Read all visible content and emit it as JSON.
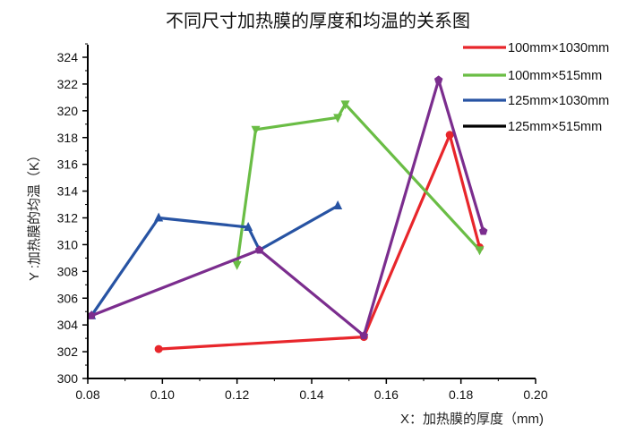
{
  "chart_data": {
    "type": "line",
    "title": "不同尺寸加热膜的厚度和均温的关系图",
    "xlabel": "X：加热膜的厚度（mm)",
    "ylabel": "Y :加热膜的均温（K）",
    "xlim": [
      0.08,
      0.2
    ],
    "ylim": [
      300,
      325
    ],
    "x_ticks": [
      "0.08",
      "0.10",
      "0.12",
      "0.14",
      "0.16",
      "0.18",
      "0.20"
    ],
    "y_ticks": [
      "300",
      "302",
      "304",
      "306",
      "308",
      "310",
      "312",
      "314",
      "316",
      "318",
      "320",
      "322",
      "324"
    ],
    "grid": false,
    "legend_position": "top-right",
    "series": [
      {
        "name": "100mm×1030mm",
        "color": "#e8262b",
        "marker": "circle",
        "x": [
          0.099,
          0.154,
          0.177,
          0.185
        ],
        "y": [
          302.2,
          303.1,
          318.2,
          309.8
        ]
      },
      {
        "name": "100mm×515mm",
        "color": "#6abd45",
        "marker": "triangle-down",
        "x": [
          0.12,
          0.125,
          0.147,
          0.149,
          0.185
        ],
        "y": [
          308.5,
          318.6,
          319.5,
          320.5,
          309.6
        ]
      },
      {
        "name": "125mm×1030mm",
        "color": "#2753a3",
        "marker": "triangle-up",
        "x": [
          0.081,
          0.099,
          0.123,
          0.126,
          0.147
        ],
        "y": [
          304.7,
          312.0,
          311.3,
          309.6,
          312.9
        ],
        "marker_mask": [
          true,
          true,
          true,
          false,
          true
        ]
      },
      {
        "name": "125mm×515mm",
        "color": "#7b2d8e",
        "legend_color": "#000000",
        "marker": "pentagon",
        "x": [
          0.081,
          0.126,
          0.154,
          0.174,
          0.186
        ],
        "y": [
          304.7,
          309.6,
          303.2,
          322.3,
          311.0
        ]
      }
    ]
  }
}
